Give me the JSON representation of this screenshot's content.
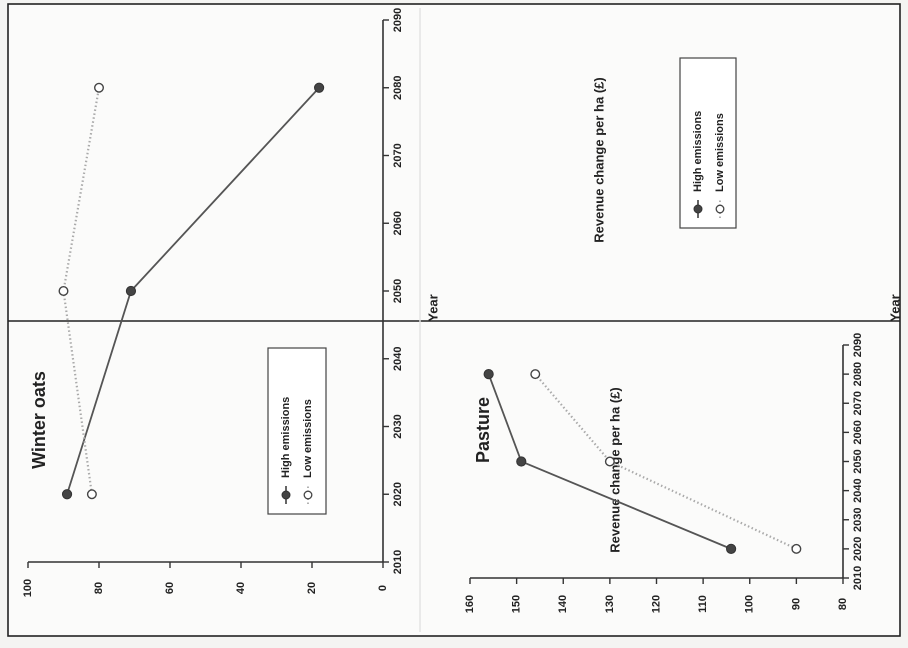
{
  "chart_data": [
    {
      "type": "line",
      "title": "Winter oats",
      "xlabel": "Year",
      "ylabel": "Revenue change per ha (£)",
      "xlim": [
        2010,
        2090
      ],
      "ylim": [
        0,
        100
      ],
      "x_ticks": [
        "2010",
        "2020",
        "2030",
        "2040",
        "2050",
        "2060",
        "2070",
        "2080",
        "2090"
      ],
      "y_ticks": [
        "0",
        "20",
        "40",
        "60",
        "80",
        "100"
      ],
      "x": [
        2020,
        2050,
        2080
      ],
      "series": [
        {
          "name": "High emissions",
          "values": [
            89,
            71,
            18
          ],
          "color": "#555555",
          "marker": "filled-circle",
          "line": "solid"
        },
        {
          "name": "Low emissions",
          "values": [
            82,
            90,
            80
          ],
          "color": "#aaaaaa",
          "marker": "open-circle",
          "line": "dotted"
        }
      ],
      "legend": "center-bottom",
      "grid": false
    },
    {
      "type": "line",
      "title": "Pasture",
      "xlabel": "Year",
      "ylabel": "Revenue change per ha (£)",
      "xlim": [
        2010,
        2090
      ],
      "ylim": [
        80,
        160
      ],
      "x_ticks": [
        "2010",
        "2020",
        "2030",
        "2040",
        "2050",
        "2060",
        "2070",
        "2080",
        "2090"
      ],
      "y_ticks": [
        "80",
        "90",
        "100",
        "110",
        "120",
        "130",
        "140",
        "150",
        "160"
      ],
      "x": [
        2020,
        2050,
        2080
      ],
      "series": [
        {
          "name": "High emissions",
          "values": [
            104,
            149,
            156
          ],
          "color": "#555555",
          "marker": "filled-circle",
          "line": "solid"
        },
        {
          "name": "Low emissions",
          "values": [
            90,
            130,
            146
          ],
          "color": "#aaaaaa",
          "marker": "open-circle",
          "line": "dotted"
        }
      ],
      "legend": "top-right",
      "grid": false
    }
  ]
}
